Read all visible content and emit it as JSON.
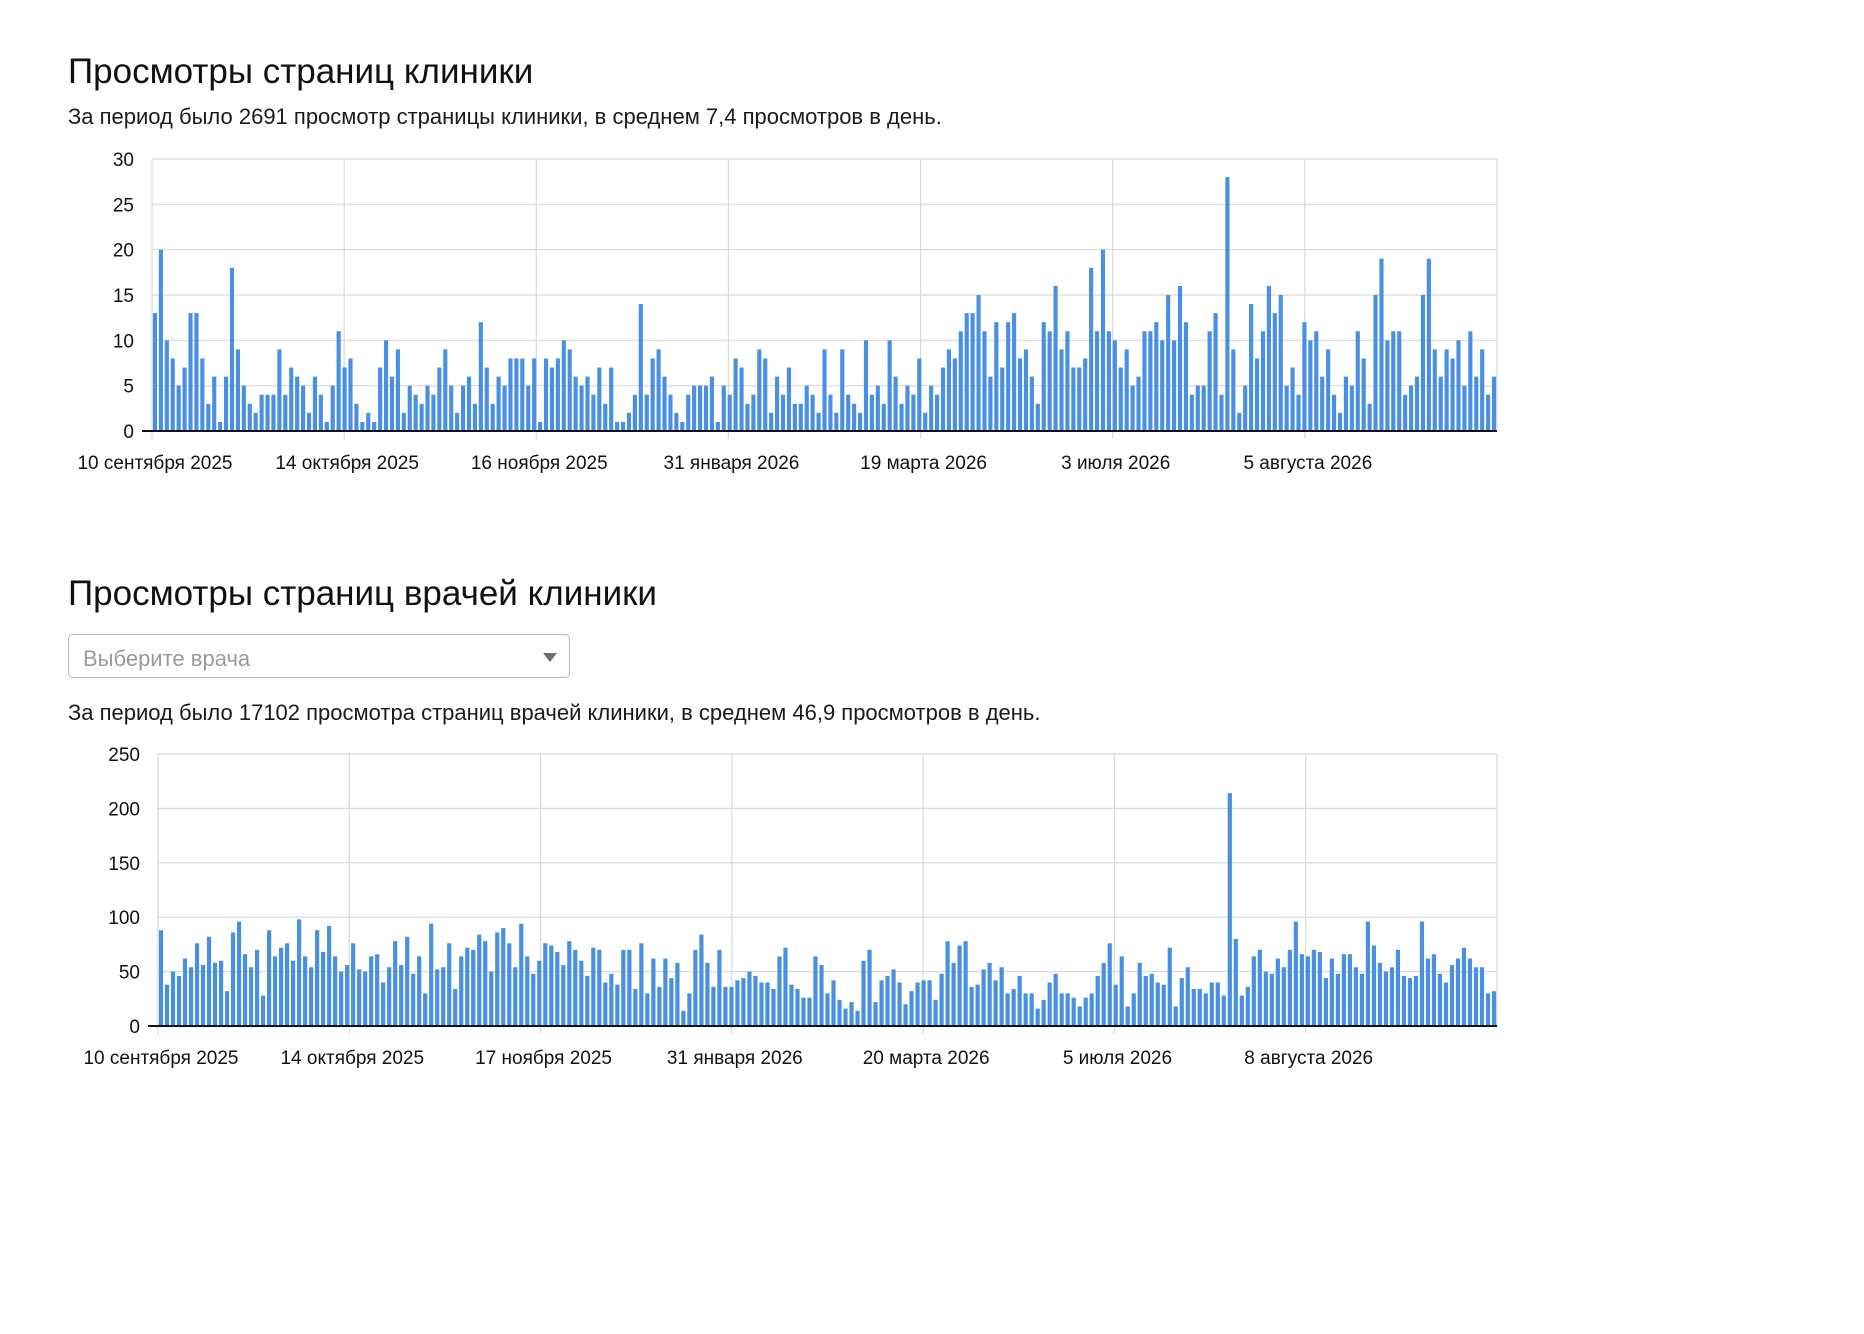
{
  "chart1": {
    "title": "Просмотры страниц клиники",
    "summary": "За период было 2691 просмотр страницы клиники, в среднем 7,4 просмотров в день."
  },
  "chart2": {
    "title": "Просмотры страниц врачей клиники",
    "select_placeholder": "Выберите врача",
    "summary": "За период было 17102 просмотра страниц врачей клиники, в среднем 46,9 просмотров в день."
  },
  "colors": {
    "bar": "#4a90e2",
    "grid": "#d9d9d9",
    "axis": "#111111"
  },
  "chart_data": [
    {
      "type": "bar",
      "title": "Просмотры страниц клиники",
      "xlabel": "",
      "ylabel": "",
      "ylim": [
        0,
        30
      ],
      "yticks": [
        0,
        5,
        10,
        15,
        20,
        25,
        30
      ],
      "xtick_labels": [
        "10 сентября 2025",
        "14 октября 2025",
        "16 ноября 2025",
        "31 января 2026",
        "19 марта 2026",
        "3 июля 2026",
        "5 августа 2026"
      ],
      "grid": true,
      "values": [
        13,
        20,
        10,
        8,
        5,
        7,
        13,
        13,
        8,
        3,
        6,
        1,
        6,
        18,
        9,
        5,
        3,
        2,
        4,
        4,
        4,
        9,
        4,
        7,
        6,
        5,
        2,
        6,
        4,
        1,
        5,
        11,
        7,
        8,
        3,
        1,
        2,
        1,
        7,
        10,
        6,
        9,
        2,
        5,
        4,
        3,
        5,
        4,
        7,
        9,
        5,
        2,
        5,
        6,
        3,
        12,
        7,
        3,
        6,
        5,
        8,
        8,
        8,
        5,
        8,
        1,
        8,
        7,
        8,
        10,
        9,
        6,
        5,
        6,
        4,
        7,
        3,
        7,
        1,
        1,
        2,
        4,
        14,
        4,
        8,
        9,
        6,
        4,
        2,
        1,
        4,
        5,
        5,
        5,
        6,
        1,
        5,
        4,
        8,
        7,
        3,
        4,
        9,
        8,
        2,
        6,
        4,
        7,
        3,
        3,
        5,
        4,
        2,
        9,
        4,
        2,
        9,
        4,
        3,
        2,
        10,
        4,
        5,
        3,
        10,
        6,
        3,
        5,
        4,
        8,
        2,
        5,
        4,
        7,
        9,
        8,
        11,
        13,
        13,
        15,
        11,
        6,
        12,
        7,
        12,
        13,
        8,
        9,
        6,
        3,
        12,
        11,
        16,
        9,
        11,
        7,
        7,
        8,
        18,
        11,
        20,
        11,
        10,
        7,
        9,
        5,
        6,
        11,
        11,
        12,
        10,
        15,
        10,
        16,
        12,
        4,
        5,
        5,
        11,
        13,
        4,
        28,
        9,
        2,
        5,
        14,
        8,
        11,
        16,
        13,
        15,
        5,
        7,
        4,
        12,
        10,
        11,
        6,
        9,
        4,
        2,
        6,
        5,
        11,
        8,
        3,
        15,
        19,
        10,
        11,
        11,
        4,
        5,
        6,
        15,
        19,
        9,
        6,
        9,
        8,
        10,
        5,
        11,
        6,
        9,
        4,
        6
      ]
    },
    {
      "type": "bar",
      "title": "Просмотры страниц врачей клиники",
      "xlabel": "",
      "ylabel": "",
      "ylim": [
        0,
        250
      ],
      "yticks": [
        0,
        50,
        100,
        150,
        200,
        250
      ],
      "xtick_labels": [
        "10 сентября 2025",
        "14 октября 2025",
        "17 ноября 2025",
        "31 января 2026",
        "20 марта 2026",
        "5 июля 2026",
        "8 августа 2026"
      ],
      "grid": true,
      "values": [
        88,
        38,
        50,
        46,
        62,
        54,
        76,
        56,
        82,
        58,
        60,
        32,
        86,
        96,
        66,
        54,
        70,
        28,
        88,
        64,
        72,
        76,
        60,
        98,
        64,
        54,
        88,
        68,
        92,
        64,
        50,
        56,
        76,
        52,
        50,
        64,
        66,
        40,
        54,
        78,
        56,
        82,
        48,
        64,
        30,
        94,
        52,
        54,
        76,
        34,
        64,
        72,
        70,
        84,
        78,
        50,
        86,
        90,
        76,
        54,
        94,
        64,
        48,
        60,
        76,
        74,
        68,
        56,
        78,
        70,
        60,
        46,
        72,
        70,
        40,
        48,
        38,
        70,
        70,
        34,
        76,
        30,
        62,
        36,
        62,
        44,
        58,
        14,
        30,
        70,
        84,
        58,
        36,
        70,
        36,
        36,
        42,
        44,
        50,
        46,
        40,
        40,
        34,
        64,
        72,
        38,
        34,
        26,
        26,
        64,
        56,
        30,
        42,
        24,
        16,
        22,
        14,
        60,
        70,
        22,
        42,
        46,
        52,
        40,
        20,
        32,
        40,
        42,
        42,
        24,
        48,
        78,
        58,
        74,
        78,
        36,
        38,
        52,
        58,
        42,
        54,
        30,
        34,
        46,
        30,
        30,
        16,
        24,
        40,
        48,
        30,
        30,
        26,
        18,
        26,
        30,
        46,
        58,
        76,
        38,
        64,
        18,
        30,
        58,
        46,
        48,
        40,
        38,
        72,
        18,
        44,
        54,
        34,
        34,
        30,
        40,
        40,
        28,
        214,
        80,
        28,
        36,
        64,
        70,
        50,
        48,
        62,
        54,
        70,
        96,
        66,
        64,
        70,
        68,
        44,
        62,
        48,
        66,
        66,
        54,
        48,
        96,
        74,
        58,
        50,
        54,
        70,
        46,
        44,
        46,
        96,
        62,
        66,
        48,
        40,
        56,
        62,
        72,
        62,
        54,
        54,
        30,
        32
      ]
    }
  ]
}
